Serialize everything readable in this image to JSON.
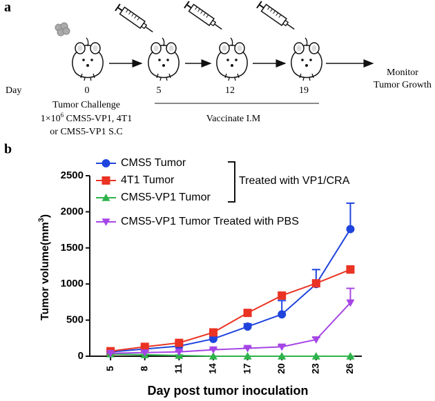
{
  "panel_a": {
    "label": "a",
    "day_label": "Day",
    "days": [
      "0",
      "5",
      "12",
      "19"
    ],
    "challenge": {
      "title": "Tumor Challenge",
      "line1_start": "1×10",
      "line1_sup": "6",
      "line1_end": " CMS5-VP1, 4T1",
      "line2": "or CMS5-VP1 S.C"
    },
    "vaccinate": "Vaccinate I.M",
    "monitor": [
      "Monitor",
      "Tumor Growth"
    ]
  },
  "chart_data": {
    "type": "line",
    "panel_label": "b",
    "x_label": "Day post  tumor inoculation",
    "y_label": "Tumor volume(mm",
    "y_label_sup": "3",
    "y_label_end": ")",
    "x": [
      5,
      8,
      11,
      14,
      17,
      20,
      23,
      26
    ],
    "xlim": [
      3,
      27
    ],
    "xticks": [
      5,
      8,
      11,
      14,
      17,
      20,
      23,
      26
    ],
    "ylim": [
      0,
      2500
    ],
    "yticks": [
      0,
      500,
      1000,
      1500,
      2000,
      2500
    ],
    "bracket_label": "Treated with VP1/CRA",
    "series": [
      {
        "name": "CMS5 Tumor",
        "color": "#1f44dd",
        "marker": "circle",
        "values": [
          60,
          100,
          140,
          240,
          410,
          580,
          1000,
          1760
        ],
        "errors": [
          10,
          15,
          20,
          30,
          40,
          190,
          200,
          360
        ]
      },
      {
        "name": "4T1 Tumor",
        "color": "#ea3323",
        "marker": "square",
        "values": [
          70,
          130,
          185,
          330,
          600,
          840,
          1010,
          1200
        ],
        "errors": [
          10,
          15,
          15,
          20,
          25,
          30,
          30,
          50
        ]
      },
      {
        "name": "CMS5-VP1  Tumor",
        "color": "#2db34a",
        "marker": "triangle-up",
        "values": [
          30,
          20,
          10,
          0,
          0,
          0,
          0,
          0
        ],
        "errors": [
          5,
          5,
          5,
          0,
          0,
          0,
          0,
          0
        ]
      },
      {
        "name": "CMS5-VP1  Tumor Treated with PBS",
        "color": "#a545e6",
        "marker": "triangle-down",
        "values": [
          40,
          50,
          60,
          90,
          110,
          130,
          230,
          740
        ],
        "errors": [
          5,
          5,
          10,
          10,
          15,
          20,
          30,
          200
        ]
      }
    ]
  }
}
